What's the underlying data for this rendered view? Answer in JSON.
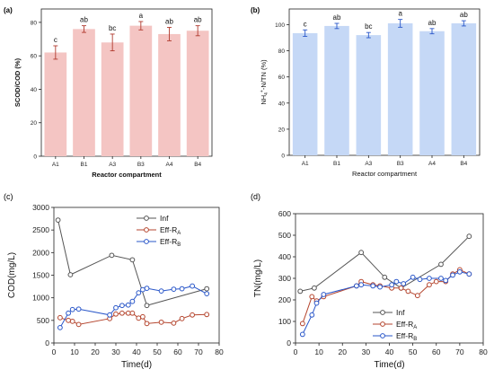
{
  "chart_data": [
    {
      "id": "a",
      "panel_label": "(a)",
      "type": "bar",
      "categories": [
        "A1",
        "B1",
        "A3",
        "B3",
        "A4",
        "B4"
      ],
      "values": [
        62,
        76,
        68,
        78,
        73,
        75
      ],
      "errors": [
        4,
        2,
        5,
        2.5,
        4,
        3
      ],
      "letters": [
        "c",
        "ab",
        "bc",
        "a",
        "ab",
        "ab"
      ],
      "xlabel": "Reactor compartment",
      "ylabel": "SCOD/COD (%)",
      "ylim": [
        0,
        88
      ],
      "yticks": [
        0,
        20,
        40,
        60,
        80
      ],
      "color": "#f4c5c3",
      "error_color": "#b03a2e"
    },
    {
      "id": "b",
      "panel_label": "(b)",
      "type": "bar",
      "categories": [
        "A1",
        "B1",
        "A3",
        "B3",
        "A4",
        "B4"
      ],
      "values": [
        93.5,
        99,
        92,
        101,
        95,
        101
      ],
      "errors": [
        2.5,
        2,
        2,
        3,
        2,
        2
      ],
      "letters": [
        "c",
        "ab",
        "bc",
        "a",
        "ab",
        "ab"
      ],
      "xlabel": "Reactor compartment",
      "ylabel_main": "NH",
      "ylabel_sub": "4",
      "ylabel_sup": "+",
      "ylabel_rest": "-N/TN (%)",
      "ylim": [
        0,
        112
      ],
      "yticks": [
        0,
        20,
        40,
        60,
        80,
        100
      ],
      "color": "#c5d8f6",
      "error_color": "#2a57c9"
    },
    {
      "id": "c",
      "panel_label": "(c)",
      "type": "line",
      "xlabel": "Time(d)",
      "ylabel": "COD(mg/L)",
      "xlim": [
        0,
        80
      ],
      "ylim": [
        0,
        3000
      ],
      "xticks": [
        0,
        10,
        20,
        30,
        40,
        50,
        60,
        70,
        80
      ],
      "yticks": [
        0,
        500,
        1000,
        1500,
        2000,
        2500,
        3000
      ],
      "legend_position": "top-right",
      "series": [
        {
          "name": "Inf",
          "sub": "",
          "color": "#555555",
          "points": [
            [
              2,
              2720
            ],
            [
              8,
              1510
            ],
            [
              28,
              1940
            ],
            [
              38,
              1840
            ],
            [
              45,
              830
            ],
            [
              74,
              1200
            ]
          ]
        },
        {
          "name": "Eff-R",
          "sub": "A",
          "color": "#b5462f",
          "points": [
            [
              3,
              560
            ],
            [
              7,
              500
            ],
            [
              9,
              480
            ],
            [
              12,
              410
            ],
            [
              27,
              540
            ],
            [
              30,
              640
            ],
            [
              33,
              660
            ],
            [
              36,
              660
            ],
            [
              38,
              660
            ],
            [
              41,
              550
            ],
            [
              43,
              580
            ],
            [
              45,
              430
            ],
            [
              52,
              460
            ],
            [
              58,
              440
            ],
            [
              62,
              540
            ],
            [
              67,
              620
            ],
            [
              74,
              630
            ]
          ]
        },
        {
          "name": "Eff-R",
          "sub": "B",
          "color": "#2a57c9",
          "points": [
            [
              3,
              340
            ],
            [
              7,
              660
            ],
            [
              9,
              740
            ],
            [
              12,
              750
            ],
            [
              27,
              620
            ],
            [
              30,
              780
            ],
            [
              33,
              830
            ],
            [
              36,
              840
            ],
            [
              38,
              920
            ],
            [
              41,
              1110
            ],
            [
              43,
              1180
            ],
            [
              45,
              1210
            ],
            [
              52,
              1150
            ],
            [
              58,
              1190
            ],
            [
              62,
              1200
            ],
            [
              67,
              1260
            ],
            [
              74,
              1090
            ]
          ]
        }
      ]
    },
    {
      "id": "d",
      "panel_label": "(d)",
      "type": "line",
      "xlabel": "Time(d)",
      "ylabel": "TN(mg/L)",
      "xlim": [
        0,
        80
      ],
      "ylim": [
        0,
        600
      ],
      "xticks": [
        0,
        10,
        20,
        30,
        40,
        50,
        60,
        70,
        80
      ],
      "yticks": [
        0,
        100,
        200,
        300,
        400,
        500,
        600
      ],
      "legend_position": "bottom-center",
      "series": [
        {
          "name": "Inf",
          "sub": "",
          "color": "#555555",
          "points": [
            [
              2,
              240
            ],
            [
              8,
              255
            ],
            [
              28,
              420
            ],
            [
              38,
              305
            ],
            [
              45,
              255
            ],
            [
              62,
              365
            ],
            [
              74,
              495
            ]
          ]
        },
        {
          "name": "Eff-R",
          "sub": "A",
          "color": "#b5462f",
          "points": [
            [
              3,
              90
            ],
            [
              7,
              215
            ],
            [
              9,
              195
            ],
            [
              12,
              215
            ],
            [
              26,
              265
            ],
            [
              28,
              285
            ],
            [
              33,
              270
            ],
            [
              36,
              265
            ],
            [
              41,
              255
            ],
            [
              45,
              255
            ],
            [
              48,
              240
            ],
            [
              52,
              220
            ],
            [
              57,
              270
            ],
            [
              60,
              285
            ],
            [
              64,
              285
            ],
            [
              67,
              320
            ],
            [
              70,
              340
            ],
            [
              74,
              320
            ]
          ]
        },
        {
          "name": "Eff-R",
          "sub": "B",
          "color": "#2a57c9",
          "points": [
            [
              3,
              40
            ],
            [
              7,
              130
            ],
            [
              9,
              185
            ],
            [
              12,
              225
            ],
            [
              26,
              265
            ],
            [
              28,
              270
            ],
            [
              33,
              265
            ],
            [
              36,
              260
            ],
            [
              41,
              270
            ],
            [
              43,
              285
            ],
            [
              46,
              275
            ],
            [
              50,
              305
            ],
            [
              53,
              295
            ],
            [
              57,
              300
            ],
            [
              62,
              300
            ],
            [
              64,
              290
            ],
            [
              67,
              315
            ],
            [
              70,
              330
            ],
            [
              74,
              320
            ]
          ]
        }
      ]
    }
  ]
}
